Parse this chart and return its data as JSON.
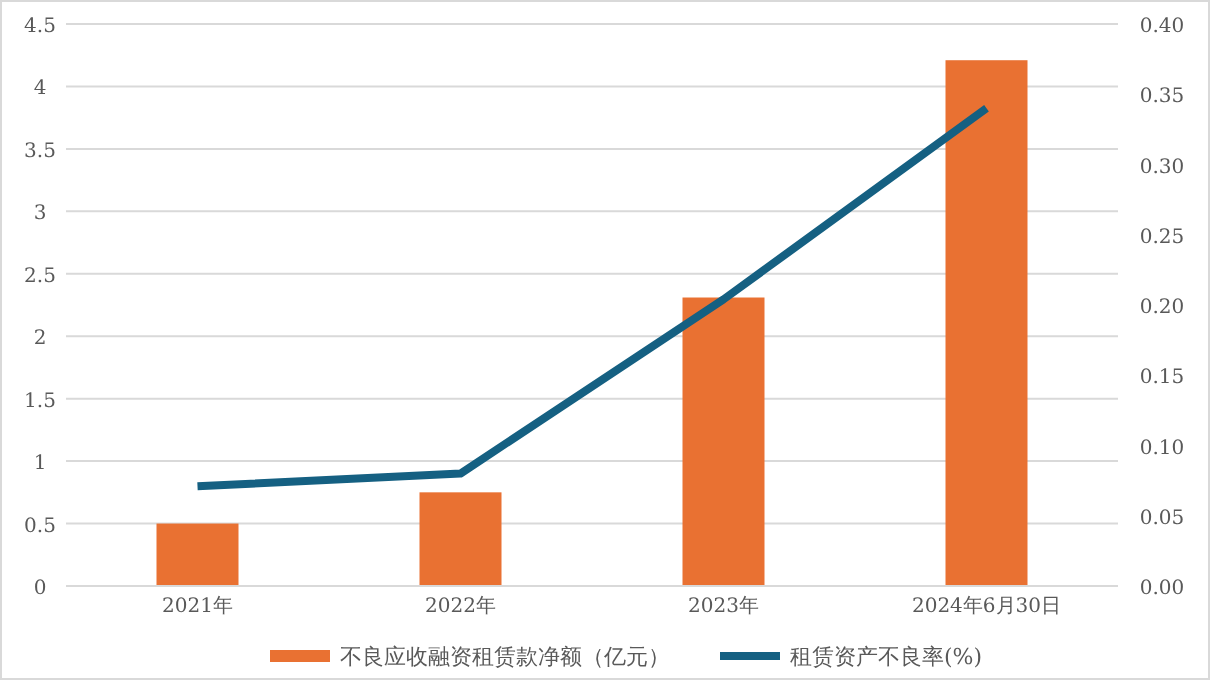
{
  "chart_data": {
    "type": "bar",
    "categories": [
      "2021年",
      "2022年",
      "2023年",
      "2024年6月30日"
    ],
    "series": [
      {
        "name": "不良应收融资租赁款净额（亿元）",
        "color": "#e97132",
        "values": [
          0.5,
          0.75,
          2.31,
          4.21
        ]
      },
      {
        "name": "租赁资产不良率(%)",
        "type": "line",
        "axis": "y2",
        "color": "#156082",
        "values": [
          0.071,
          0.08,
          0.204,
          0.34
        ]
      }
    ],
    "ylim": [
      0,
      4.5
    ],
    "yticks": [
      0,
      {
        "value": 0.5,
        "label": "0.5"
      },
      1,
      {
        "value": 1.5,
        "label": "1.5"
      },
      2,
      {
        "value": 2.5,
        "label": "2.5"
      },
      3,
      {
        "value": 3.5,
        "label": "3.5"
      },
      4,
      {
        "value": 4.5,
        "label": "4.5"
      }
    ],
    "y2lim": [
      0,
      0.4
    ],
    "y2ticks": [
      {
        "value": 0,
        "label": "0.00"
      },
      {
        "value": 0.05,
        "label": "0.05"
      },
      {
        "value": 0.1,
        "label": "0.10"
      },
      {
        "value": 0.15,
        "label": "0.15"
      },
      {
        "value": 0.2,
        "label": "0.20"
      },
      {
        "value": 0.25,
        "label": "0.25"
      },
      {
        "value": 0.3,
        "label": "0.30"
      },
      {
        "value": 0.35,
        "label": "0.35"
      },
      {
        "value": 0.4,
        "label": "0.40"
      }
    ],
    "grid": "y",
    "legend": "bottom",
    "marker": "none"
  }
}
